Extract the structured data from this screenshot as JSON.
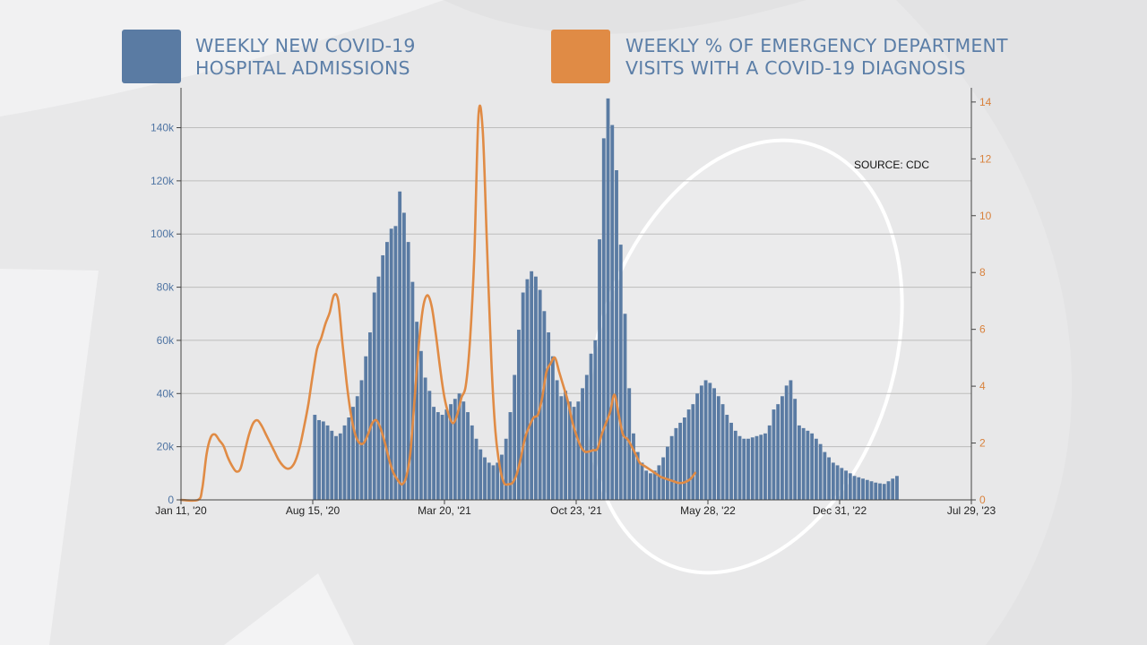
{
  "legend": [
    {
      "label_line1": "WEEKLY NEW COVID-19",
      "label_line2": "HOSPITAL ADMISSIONS",
      "color": "#5a7ba3"
    },
    {
      "label_line1": "WEEKLY % OF EMERGENCY DEPARTMENT",
      "label_line2": "VISITS WITH A COVID-19 DIAGNOSIS",
      "color": "#e08b45"
    }
  ],
  "source": "SOURCE: CDC",
  "colors": {
    "bar": "#5a7ba3",
    "line": "#e08b45",
    "left_axis_text": "#4f74a3",
    "right_axis_text": "#d9823d",
    "grid": "#bdbdbd"
  },
  "chart_data": {
    "type": "bar+line",
    "title": "",
    "x_tick_labels": [
      "Jan 11, '20",
      "Aug 15, '20",
      "Mar 20, '21",
      "Oct 23, '21",
      "May 28, '22",
      "Dec 31, '22",
      "Jul 29, '23"
    ],
    "x_tick_week_index": [
      0,
      31,
      62,
      93,
      124,
      155,
      186
    ],
    "left_axis": {
      "label": "",
      "ylim": [
        0,
        155000
      ],
      "tick_values": [
        0,
        20000,
        40000,
        60000,
        80000,
        100000,
        120000,
        140000
      ],
      "tick_labels": [
        "0",
        "20k",
        "40k",
        "60k",
        "80k",
        "100k",
        "120k",
        "140k"
      ]
    },
    "right_axis": {
      "label": "",
      "ylim": [
        0,
        14.5
      ],
      "tick_values": [
        0,
        2,
        4,
        6,
        8,
        10,
        12,
        14
      ],
      "tick_labels": [
        "0",
        "2",
        "4",
        "6",
        "8",
        "10",
        "12",
        "14"
      ]
    },
    "series": [
      {
        "name": "Weekly new COVID-19 hospital admissions",
        "type": "bar",
        "axis": "left",
        "start_week_index": 31,
        "values": [
          32000,
          30000,
          29500,
          28000,
          26000,
          24000,
          25000,
          28000,
          31000,
          35000,
          39000,
          45000,
          54000,
          63000,
          78000,
          84000,
          92000,
          97000,
          102000,
          103000,
          116000,
          108000,
          97000,
          82000,
          67000,
          56000,
          46000,
          41000,
          35000,
          33000,
          32000,
          34000,
          36000,
          38000,
          40000,
          37000,
          33000,
          28000,
          23000,
          19000,
          16000,
          14000,
          13000,
          14000,
          17000,
          23000,
          33000,
          47000,
          64000,
          78000,
          83000,
          86000,
          84000,
          79000,
          71000,
          63000,
          54000,
          45000,
          39000,
          41000,
          37000,
          35000,
          37000,
          42000,
          47000,
          55000,
          60000,
          98000,
          136000,
          151000,
          141000,
          124000,
          96000,
          70000,
          42000,
          25000,
          18000,
          14000,
          11000,
          10000,
          11000,
          13000,
          16000,
          20000,
          24000,
          27000,
          29000,
          31000,
          34000,
          36000,
          40000,
          43000,
          45000,
          44000,
          42000,
          39000,
          36000,
          32000,
          29000,
          26000,
          24000,
          23000,
          23000,
          23500,
          24000,
          24500,
          25000,
          28000,
          34000,
          36000,
          39000,
          43000,
          45000,
          38000,
          28000,
          27000,
          26000,
          25000,
          23000,
          21000,
          18000,
          16000,
          14000,
          13000,
          12000,
          11000,
          10000,
          9000,
          8500,
          8000,
          7500,
          7000,
          6500,
          6200,
          6000,
          7000,
          8000,
          9000
        ]
      },
      {
        "name": "Weekly % of emergency department visits with a COVID-19 diagnosis",
        "type": "line",
        "axis": "right",
        "points": [
          [
            0,
            0.0
          ],
          [
            4,
            0.0
          ],
          [
            5,
            0.4
          ],
          [
            6,
            1.6
          ],
          [
            7,
            2.2
          ],
          [
            8,
            2.3
          ],
          [
            9,
            2.1
          ],
          [
            10,
            1.9
          ],
          [
            11,
            1.5
          ],
          [
            12,
            1.2
          ],
          [
            13,
            1.0
          ],
          [
            14,
            1.1
          ],
          [
            15,
            1.7
          ],
          [
            16,
            2.3
          ],
          [
            17,
            2.7
          ],
          [
            18,
            2.8
          ],
          [
            19,
            2.6
          ],
          [
            20,
            2.3
          ],
          [
            21,
            2.0
          ],
          [
            22,
            1.7
          ],
          [
            23,
            1.4
          ],
          [
            24,
            1.2
          ],
          [
            25,
            1.1
          ],
          [
            26,
            1.15
          ],
          [
            27,
            1.4
          ],
          [
            28,
            1.9
          ],
          [
            29,
            2.6
          ],
          [
            30,
            3.4
          ],
          [
            31,
            4.4
          ],
          [
            32,
            5.3
          ],
          [
            33,
            5.7
          ],
          [
            34,
            6.2
          ],
          [
            35,
            6.6
          ],
          [
            36,
            7.2
          ],
          [
            37,
            7.0
          ],
          [
            38,
            5.5
          ],
          [
            39,
            4.1
          ],
          [
            40,
            3.0
          ],
          [
            41,
            2.3
          ],
          [
            42,
            2.0
          ],
          [
            43,
            2.0
          ],
          [
            44,
            2.3
          ],
          [
            45,
            2.7
          ],
          [
            46,
            2.8
          ],
          [
            47,
            2.5
          ],
          [
            48,
            2.0
          ],
          [
            49,
            1.4
          ],
          [
            50,
            0.95
          ],
          [
            51,
            0.7
          ],
          [
            52,
            0.55
          ],
          [
            53,
            0.8
          ],
          [
            54,
            1.7
          ],
          [
            55,
            3.6
          ],
          [
            56,
            5.5
          ],
          [
            57,
            6.8
          ],
          [
            58,
            7.2
          ],
          [
            59,
            6.8
          ],
          [
            60,
            5.8
          ],
          [
            61,
            4.6
          ],
          [
            62,
            3.6
          ],
          [
            63,
            3.0
          ],
          [
            64,
            2.7
          ],
          [
            65,
            3.0
          ],
          [
            66,
            3.6
          ],
          [
            67,
            4.0
          ],
          [
            68,
            5.6
          ],
          [
            69,
            8.5
          ],
          [
            70,
            13.5
          ],
          [
            71,
            13.0
          ],
          [
            72,
            9.0
          ],
          [
            73,
            5.0
          ],
          [
            74,
            2.4
          ],
          [
            75,
            1.2
          ],
          [
            76,
            0.6
          ],
          [
            77,
            0.55
          ],
          [
            78,
            0.6
          ],
          [
            79,
            0.9
          ],
          [
            80,
            1.5
          ],
          [
            81,
            2.2
          ],
          [
            82,
            2.6
          ],
          [
            83,
            2.9
          ],
          [
            84,
            3.0
          ],
          [
            85,
            3.6
          ],
          [
            86,
            4.5
          ],
          [
            87,
            4.8
          ],
          [
            88,
            5.0
          ],
          [
            89,
            4.5
          ],
          [
            90,
            4.0
          ],
          [
            91,
            3.5
          ],
          [
            92,
            2.8
          ],
          [
            93,
            2.3
          ],
          [
            94,
            1.9
          ],
          [
            95,
            1.7
          ],
          [
            96,
            1.7
          ],
          [
            97,
            1.75
          ],
          [
            98,
            1.8
          ],
          [
            99,
            2.3
          ],
          [
            100,
            2.7
          ],
          [
            101,
            3.1
          ],
          [
            102,
            3.7
          ],
          [
            103,
            3.0
          ],
          [
            104,
            2.3
          ],
          [
            105,
            2.15
          ],
          [
            106,
            1.9
          ],
          [
            107,
            1.6
          ],
          [
            108,
            1.3
          ],
          [
            109,
            1.2
          ],
          [
            110,
            1.1
          ],
          [
            111,
            1.0
          ],
          [
            112,
            0.9
          ],
          [
            113,
            0.8
          ],
          [
            114,
            0.75
          ],
          [
            115,
            0.7
          ],
          [
            116,
            0.65
          ],
          [
            117,
            0.6
          ],
          [
            118,
            0.6
          ],
          [
            119,
            0.65
          ],
          [
            120,
            0.75
          ],
          [
            121,
            0.95
          ]
        ]
      }
    ]
  }
}
